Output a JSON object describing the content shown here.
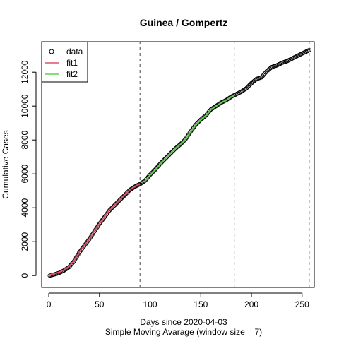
{
  "chart_data": {
    "type": "scatter",
    "title": "Guinea / Gompertz",
    "xlabel": "Days since 2020-04-03",
    "subtitle": "Simple Moving Avarage (window size = 7)",
    "ylabel": "Cumulative Cases",
    "xlim": [
      -7,
      262
    ],
    "ylim": [
      -700,
      13800
    ],
    "x_ticks": [
      0,
      50,
      100,
      150,
      200,
      250
    ],
    "y_ticks": [
      0,
      2000,
      4000,
      6000,
      8000,
      10000,
      12000
    ],
    "vlines": [
      90,
      183,
      257
    ],
    "grid": false,
    "legend_position": "top-left",
    "legend": [
      {
        "label": "data",
        "kind": "point",
        "color": "#000000"
      },
      {
        "label": "fit1",
        "kind": "line",
        "color": "#DF536B"
      },
      {
        "label": "fit2",
        "kind": "line",
        "color": "#61D04F"
      }
    ],
    "series": [
      {
        "name": "data",
        "kind": "points",
        "color": "#000000",
        "points": [
          [
            1,
            0
          ],
          [
            5,
            60
          ],
          [
            10,
            150
          ],
          [
            15,
            300
          ],
          [
            20,
            500
          ],
          [
            25,
            850
          ],
          [
            30,
            1350
          ],
          [
            35,
            1750
          ],
          [
            40,
            2150
          ],
          [
            45,
            2600
          ],
          [
            50,
            3050
          ],
          [
            55,
            3450
          ],
          [
            60,
            3850
          ],
          [
            65,
            4150
          ],
          [
            70,
            4450
          ],
          [
            75,
            4750
          ],
          [
            80,
            5050
          ],
          [
            85,
            5250
          ],
          [
            90,
            5400
          ],
          [
            95,
            5600
          ],
          [
            100,
            5950
          ],
          [
            105,
            6250
          ],
          [
            110,
            6600
          ],
          [
            115,
            6900
          ],
          [
            120,
            7200
          ],
          [
            125,
            7500
          ],
          [
            130,
            7750
          ],
          [
            135,
            8050
          ],
          [
            140,
            8500
          ],
          [
            145,
            8900
          ],
          [
            150,
            9200
          ],
          [
            155,
            9450
          ],
          [
            160,
            9800
          ],
          [
            165,
            10000
          ],
          [
            170,
            10200
          ],
          [
            175,
            10350
          ],
          [
            180,
            10550
          ],
          [
            185,
            10700
          ],
          [
            190,
            10850
          ],
          [
            195,
            11050
          ],
          [
            200,
            11350
          ],
          [
            205,
            11600
          ],
          [
            210,
            11700
          ],
          [
            215,
            12050
          ],
          [
            220,
            12300
          ],
          [
            225,
            12400
          ],
          [
            230,
            12550
          ],
          [
            235,
            12650
          ],
          [
            240,
            12800
          ],
          [
            245,
            12950
          ],
          [
            250,
            13100
          ],
          [
            257,
            13300
          ]
        ]
      },
      {
        "name": "fit1",
        "kind": "line",
        "color": "#DF536B",
        "points": [
          [
            0,
            50
          ],
          [
            5,
            100
          ],
          [
            10,
            190
          ],
          [
            15,
            330
          ],
          [
            20,
            530
          ],
          [
            25,
            870
          ],
          [
            30,
            1360
          ],
          [
            35,
            1760
          ],
          [
            40,
            2160
          ],
          [
            45,
            2610
          ],
          [
            50,
            3060
          ],
          [
            55,
            3460
          ],
          [
            60,
            3860
          ],
          [
            65,
            4160
          ],
          [
            70,
            4460
          ],
          [
            75,
            4760
          ],
          [
            80,
            5060
          ],
          [
            85,
            5260
          ],
          [
            90,
            5420
          ]
        ]
      },
      {
        "name": "fit2",
        "kind": "line",
        "color": "#61D04F",
        "points": [
          [
            91,
            5500
          ],
          [
            95,
            5580
          ],
          [
            100,
            5930
          ],
          [
            105,
            6240
          ],
          [
            110,
            6590
          ],
          [
            115,
            6890
          ],
          [
            120,
            7190
          ],
          [
            125,
            7490
          ],
          [
            130,
            7740
          ],
          [
            135,
            8040
          ],
          [
            140,
            8490
          ],
          [
            145,
            8890
          ],
          [
            150,
            9190
          ],
          [
            155,
            9440
          ],
          [
            160,
            9790
          ],
          [
            165,
            9990
          ],
          [
            170,
            10190
          ],
          [
            175,
            10340
          ],
          [
            180,
            10540
          ],
          [
            183,
            10620
          ]
        ]
      }
    ]
  }
}
